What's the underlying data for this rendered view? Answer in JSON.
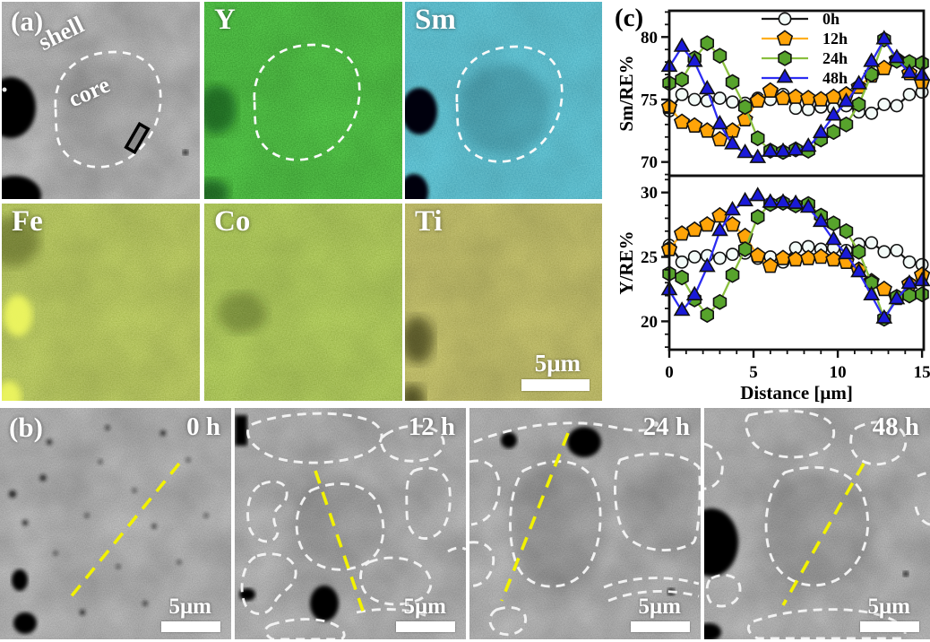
{
  "figure": {
    "panel_a": {
      "label": "(a)",
      "shell_label": "shell",
      "core_label": "core",
      "map_labels": {
        "y": "Y",
        "sm": "Sm",
        "fe": "Fe",
        "co": "Co",
        "ti": "Ti"
      },
      "scalebar": "5μm"
    },
    "panel_b": {
      "label": "(b)",
      "images": [
        {
          "time": "0 h",
          "scalebar": "5μm"
        },
        {
          "time": "12 h",
          "scalebar": "5μm"
        },
        {
          "time": "24 h",
          "scalebar": "5μm"
        },
        {
          "time": "48 h",
          "scalebar": "5μm"
        }
      ]
    },
    "panel_c": {
      "label": "(c)"
    }
  },
  "colors": {
    "series_0h_line": "#1a1a1a",
    "series_0h_fill": "#f3fbf8",
    "series_12h_line": "#ffaf1e",
    "series_12h_fill": "#ffa408",
    "series_24h_line": "#8abf3e",
    "series_24h_fill": "#57a32c",
    "series_48h_line": "#2c2cf2",
    "series_48h_fill": "#1a1ad8",
    "grain_outline": "#f2f2f2",
    "linescan": "#f2f200"
  },
  "chart_data": [
    {
      "type": "line",
      "ylabel": "Sm/RE%",
      "xlabel": "",
      "ylim": [
        68.9,
        82.1
      ],
      "yticks": [
        70,
        75,
        80
      ],
      "xlim": [
        0,
        15.1
      ],
      "xticks": [
        0,
        5,
        10,
        15
      ],
      "x_minor_step": 1,
      "y_minor_step": 1,
      "grid": false,
      "legend": true,
      "show_x_labels": false,
      "x": [
        0,
        0.75,
        1.5,
        2.25,
        3,
        3.75,
        4.5,
        5.25,
        6,
        6.75,
        7.5,
        8.25,
        9,
        9.75,
        10.5,
        11.25,
        12,
        12.75,
        13.5,
        14.25,
        15
      ],
      "series": [
        {
          "name": "0h",
          "marker": "circle",
          "line": "#1a1a1a",
          "fill": "#f3fbf8",
          "values": [
            74.1,
            75.4,
            75.0,
            74.9,
            75.1,
            74.8,
            74.7,
            75.1,
            75.0,
            75.4,
            74.3,
            74.2,
            74.4,
            74.3,
            74.5,
            74.0,
            73.9,
            74.6,
            74.5,
            75.4,
            75.6
          ]
        },
        {
          "name": "12h",
          "marker": "pentagon",
          "line": "#ffaf1e",
          "fill": "#ffa408",
          "values": [
            74.4,
            73.2,
            72.9,
            72.5,
            71.8,
            72.5,
            73.4,
            74.9,
            75.7,
            75.1,
            75.2,
            75.1,
            75.0,
            75.2,
            75.4,
            76.0,
            76.9,
            77.5,
            78.2,
            77.1,
            76.4
          ]
        },
        {
          "name": "24h",
          "marker": "hexagon",
          "line": "#8abf3e",
          "fill": "#57a32c",
          "values": [
            76.3,
            76.6,
            78.3,
            79.5,
            78.5,
            76.4,
            74.4,
            71.9,
            70.9,
            70.8,
            71.0,
            70.9,
            71.8,
            72.4,
            73.0,
            74.6,
            77.0,
            79.8,
            78.1,
            78.0,
            77.9
          ]
        },
        {
          "name": "48h",
          "marker": "triangle",
          "line": "#2c2cf2",
          "fill": "#1a1ad8",
          "values": [
            77.6,
            79.2,
            78.0,
            75.8,
            73.0,
            71.4,
            70.7,
            70.3,
            70.8,
            70.8,
            70.9,
            71.2,
            72.3,
            73.7,
            74.8,
            76.2,
            78.0,
            79.8,
            78.3,
            77.1,
            76.9
          ]
        }
      ]
    },
    {
      "type": "line",
      "ylabel": "Y/RE%",
      "xlabel": "Distance [μm]",
      "ylim": [
        17.8,
        31.3
      ],
      "yticks": [
        20,
        25,
        30
      ],
      "xlim": [
        0,
        15.1
      ],
      "xticks": [
        0,
        5,
        10,
        15
      ],
      "x_minor_step": 1,
      "y_minor_step": 1,
      "grid": false,
      "legend": false,
      "show_x_labels": true,
      "x": [
        0,
        0.75,
        1.5,
        2.25,
        3,
        3.75,
        4.5,
        5.25,
        6,
        6.75,
        7.5,
        8.25,
        9,
        9.75,
        10.5,
        11.25,
        12,
        12.75,
        13.5,
        14.25,
        15
      ],
      "series": [
        {
          "name": "0h",
          "marker": "circle",
          "line": "#1a1a1a",
          "fill": "#f3fbf8",
          "values": [
            25.9,
            24.6,
            25.0,
            25.1,
            24.9,
            25.2,
            25.3,
            24.9,
            25.0,
            24.6,
            25.7,
            25.8,
            25.6,
            25.7,
            25.5,
            26.0,
            26.1,
            25.4,
            25.5,
            24.6,
            24.4
          ]
        },
        {
          "name": "12h",
          "marker": "pentagon",
          "line": "#ffaf1e",
          "fill": "#ffa408",
          "values": [
            25.6,
            26.8,
            27.1,
            27.5,
            28.2,
            27.5,
            26.6,
            25.1,
            24.3,
            24.9,
            24.8,
            24.9,
            25.0,
            24.8,
            24.6,
            24.0,
            23.1,
            22.5,
            21.8,
            22.9,
            23.6
          ]
        },
        {
          "name": "24h",
          "marker": "hexagon",
          "line": "#8abf3e",
          "fill": "#57a32c",
          "values": [
            23.7,
            23.4,
            21.7,
            20.5,
            21.5,
            23.6,
            25.6,
            28.1,
            29.1,
            29.2,
            29.0,
            29.1,
            28.2,
            27.6,
            27.0,
            25.4,
            23.0,
            20.2,
            21.9,
            22.0,
            22.1
          ]
        },
        {
          "name": "48h",
          "marker": "triangle",
          "line": "#2c2cf2",
          "fill": "#1a1ad8",
          "values": [
            22.4,
            20.8,
            22.0,
            24.2,
            27.0,
            28.6,
            29.3,
            29.7,
            29.2,
            29.2,
            29.1,
            28.8,
            27.7,
            26.3,
            25.2,
            23.8,
            22.0,
            20.2,
            21.7,
            22.9,
            23.1
          ]
        }
      ]
    }
  ]
}
